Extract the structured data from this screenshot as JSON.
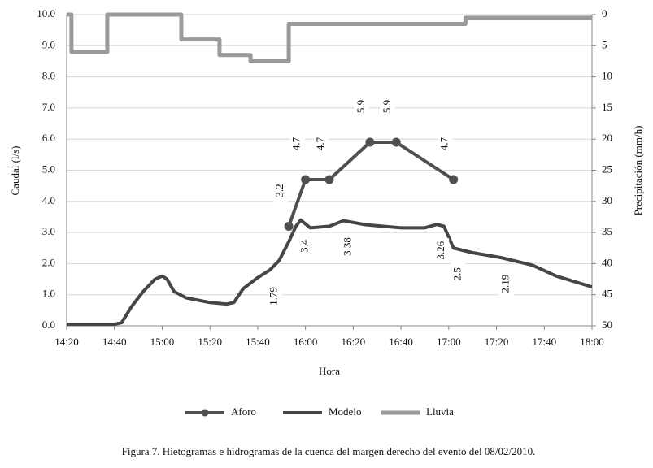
{
  "chart_data": {
    "type": "line",
    "x_label": "Hora",
    "y_label": "Caudal (l/s)",
    "y2_label": "Precipitación (mm/h)",
    "caption": "Figura 7. Hietogramas e hidrogramas de la cuenca del margen derecho del evento del 08/02/2010.",
    "xlim": [
      "14:20",
      "18:00"
    ],
    "xticks": [
      "14:20",
      "14:40",
      "15:00",
      "15:20",
      "15:40",
      "16:00",
      "16:20",
      "16:40",
      "17:00",
      "17:20",
      "17:40",
      "18:00"
    ],
    "ylim": [
      0,
      10
    ],
    "yticks": [
      {
        "value": 0,
        "label": "0.0"
      },
      {
        "value": 1,
        "label": "1.0"
      },
      {
        "value": 2,
        "label": "2.0"
      },
      {
        "value": 3,
        "label": "3.0"
      },
      {
        "value": 4,
        "label": "4.0"
      },
      {
        "value": 5,
        "label": "5.0"
      },
      {
        "value": 6,
        "label": "6.0"
      },
      {
        "value": 7,
        "label": "7.0"
      },
      {
        "value": 8,
        "label": "8.0"
      },
      {
        "value": 9,
        "label": "9.0"
      },
      {
        "value": 10,
        "label": "10.0"
      }
    ],
    "y2lim": [
      0,
      50
    ],
    "y2_inverted": true,
    "y2ticks": [
      0,
      5,
      10,
      15,
      20,
      25,
      30,
      35,
      40,
      45,
      50
    ],
    "grid": true,
    "legend": "bottom",
    "series": [
      {
        "name": "Aforo",
        "color": "#505050",
        "marker": "circle",
        "show_labels": "above",
        "x": [
          "15:53",
          "16:00",
          "16:10",
          "16:27",
          "16:38",
          "17:02"
        ],
        "values": [
          3.2,
          4.7,
          4.7,
          5.9,
          5.9,
          4.7
        ]
      },
      {
        "name": "Modelo",
        "color": "#454545",
        "show_labels": "below",
        "x": [
          "14:20",
          "14:40",
          "14:43",
          "14:47",
          "14:52",
          "14:57",
          "15:00",
          "15:02",
          "15:05",
          "15:10",
          "15:20",
          "15:27",
          "15:30",
          "15:34",
          "15:40",
          "15:45",
          "15:49",
          "15:53",
          "15:56",
          "15:58",
          "16:02",
          "16:10",
          "16:16",
          "16:25",
          "16:40",
          "16:50",
          "16:55",
          "16:58",
          "17:02",
          "17:10",
          "17:22",
          "17:35",
          "17:45",
          "18:00"
        ],
        "values": [
          0.05,
          0.05,
          0.1,
          0.6,
          1.1,
          1.5,
          1.6,
          1.5,
          1.1,
          0.9,
          0.75,
          0.7,
          0.75,
          1.2,
          1.55,
          1.79,
          2.1,
          2.7,
          3.2,
          3.4,
          3.15,
          3.2,
          3.38,
          3.25,
          3.15,
          3.15,
          3.26,
          3.2,
          2.5,
          2.35,
          2.19,
          1.95,
          1.6,
          1.25
        ],
        "value_labels": [
          null,
          null,
          null,
          null,
          null,
          null,
          null,
          null,
          null,
          null,
          null,
          null,
          null,
          null,
          null,
          "1.79",
          null,
          null,
          null,
          "3.4",
          null,
          null,
          "3.38",
          null,
          null,
          null,
          "3.26",
          null,
          "2.5",
          null,
          "2.19",
          null,
          null,
          null
        ]
      },
      {
        "name": "Lluvia",
        "color": "#9a9a9a",
        "axis": "y2",
        "x": [
          "14:20",
          "14:22",
          "14:22",
          "14:37",
          "14:37",
          "15:08",
          "15:08",
          "15:24",
          "15:24",
          "15:37",
          "15:37",
          "15:53",
          "15:53",
          "17:07",
          "17:07",
          "18:00"
        ],
        "values": [
          0,
          0,
          6,
          6,
          0,
          0,
          4,
          4,
          6.5,
          6.5,
          7.5,
          7.5,
          1.5,
          1.5,
          0.5,
          0.5
        ]
      }
    ]
  }
}
